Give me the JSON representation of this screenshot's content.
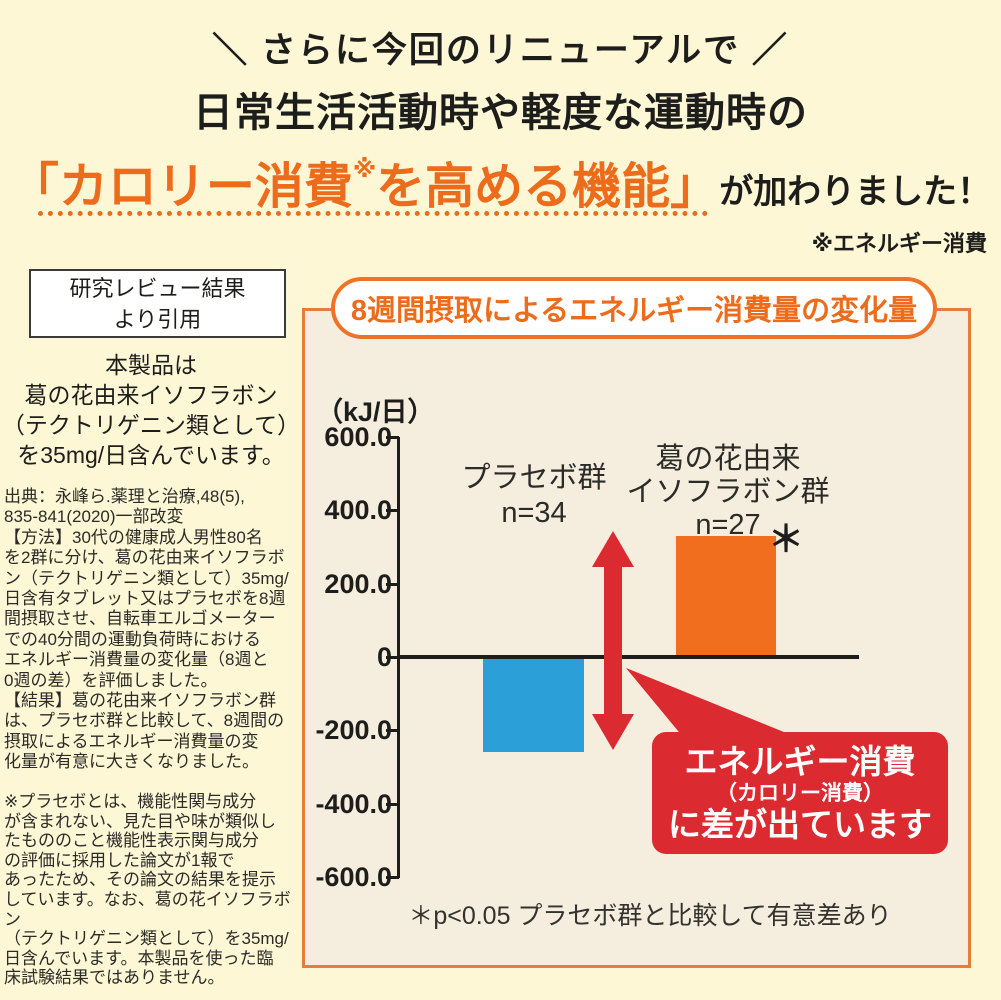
{
  "colors": {
    "background": "#fdf7d6",
    "panel_background": "#f5edde",
    "panel_border": "#e87c3a",
    "accent_orange": "#ed6c1c",
    "bar_blue": "#2b9fd8",
    "bar_orange": "#f26e1f",
    "highlight_red": "#dc2a31"
  },
  "header": {
    "line1": "＼ さらに今回のリニューアルで ／",
    "line2": "日常生活活動時や軽度な運動時の",
    "claim_open": "「カロリー消費",
    "claim_note_mark": "※",
    "claim_close": "を高める機能」",
    "claim_suffix": "が加わりました！",
    "footnote": "※エネルギー消費"
  },
  "sidebar": {
    "quote_box": "研究レビュー結果\nより引用",
    "product_text": "本製品は\n葛の花由来イソフラボン\n（テクトリゲニン類として）\nを35mg/日含んでいます。",
    "source_text": "出典：永峰ら.薬理と治療,48(5),\n835-841(2020)一部改変\n【方法】30代の健康成人男性80名\nを2群に分け、葛の花由来イソフラボ\nン（テクトリゲニン類として）35mg/\n日含有タブレット又はプラセボを8週\n間摂取させ、自転車エルゴメーター\nでの40分間の運動負荷時における\nエネルギー消費量の変化量（8週と\n0週の差）を評価しました。\n【結果】葛の花由来イソフラボン群\nは、プラセボ群と比較して、8週間の\n摂取によるエネルギー消費量の変\n化量が有意に大きくなりました。",
    "placebo_note": "※プラセボとは、機能性関与成分\nが含まれない、見た目や味が類似し\nたもののこと機能性表示関与成分\nの評価に採用した論文が1報で\nあったため、その論文の結果を提示\nしています。なお、葛の花イソフラボン\n（テクトリゲニン類として）を35mg/\n日含んでいます。本製品を使った臨\n床試験結果ではありません。"
  },
  "chart": {
    "title": "8週間摂取によるエネルギー消費量の変化量",
    "unit_label": "（kJ/日）",
    "group1_label": "プラセボ群\nn=34",
    "group2_label": "葛の花由来\nイソフラボン群\nn=27",
    "sig_mark": "＊",
    "callout_line1": "エネルギー消費",
    "callout_line2": "（カロリー消費）",
    "callout_line3": "に差が出ています",
    "footnote": "＊p<0.05 プラセボ群と比較して有意差あり"
  },
  "chart_data": {
    "type": "bar",
    "title": "8週間摂取によるエネルギー消費量の変化量",
    "ylabel": "kJ/日",
    "categories": [
      "プラセボ群 (n=34)",
      "葛の花由来イソフラボン群 (n=27)"
    ],
    "values": [
      -260,
      330
    ],
    "ylim": [
      -600,
      600
    ],
    "yticks": [
      600,
      400,
      200,
      0,
      -200,
      -400,
      -600
    ],
    "ytick_labels": [
      "600.0",
      "400.0",
      "200.0",
      "0",
      "-200.0",
      "-400.0",
      "-600.0"
    ],
    "bar_colors": [
      "#2b9fd8",
      "#f26e1f"
    ],
    "grid": false,
    "legend": false,
    "annotation": "エネルギー消費（カロリー消費）に差が出ています",
    "significance_note": "＊p<0.05 プラセボ群と比較して有意差あり"
  }
}
